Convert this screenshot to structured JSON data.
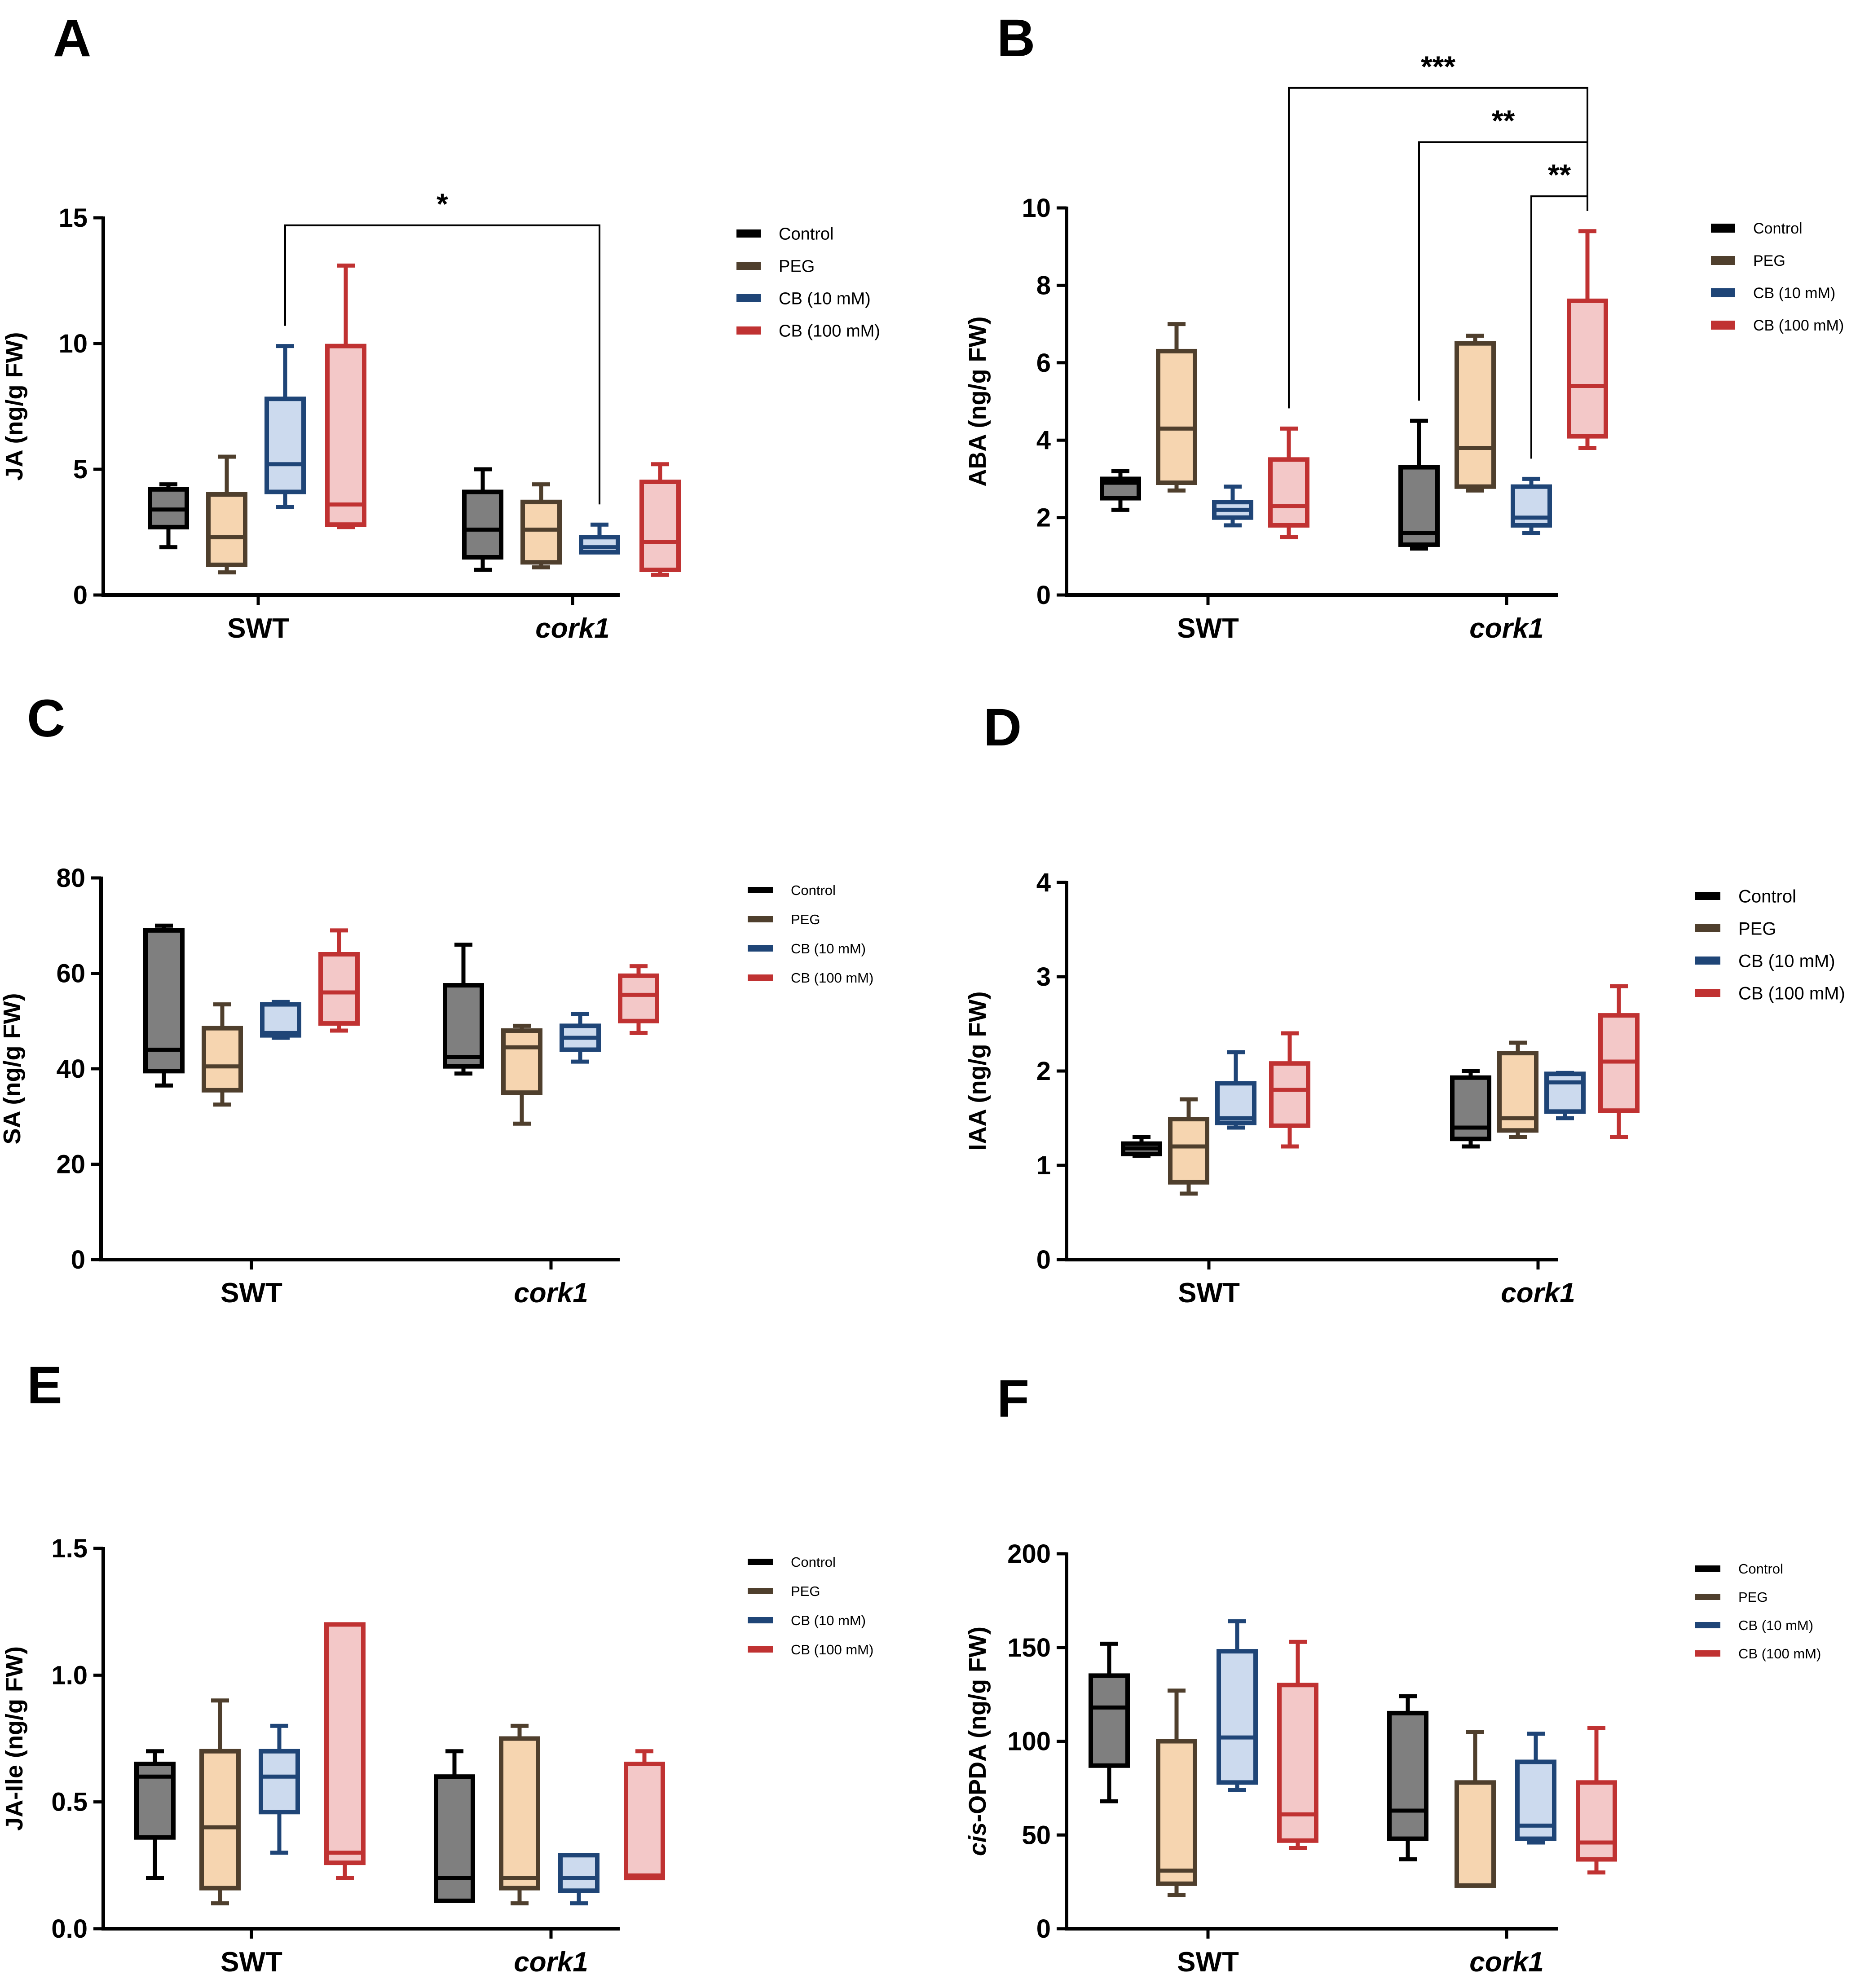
{
  "colors": {
    "Control": {
      "stroke": "#000000",
      "fill": "#7f7f7f"
    },
    "PEG": {
      "stroke": "#4f3f2d",
      "fill": "#f6d5b0"
    },
    "CB (10 mM)": {
      "stroke": "#1f4577",
      "fill": "#ccdaee"
    },
    "CB (100 mM)": {
      "stroke": "#c03232",
      "fill": "#f3c8c8"
    }
  },
  "chart_data": [
    {
      "panel": "A",
      "type": "box",
      "ylabel": "JA (ng/g FW)",
      "ylim": [
        0,
        15
      ],
      "yticks": [
        "0",
        "5",
        "10",
        "15"
      ],
      "groups": [
        "SWT",
        "cork1"
      ],
      "italic_groups": [
        "cork1"
      ],
      "legend": [
        "Control",
        "PEG",
        "CB (10 mM)",
        "CB (100 mM)"
      ],
      "series": [
        {
          "name": "Control",
          "boxes": [
            {
              "min": 1.9,
              "q1": 2.7,
              "median": 3.4,
              "q3": 4.2,
              "max": 4.4
            },
            {
              "min": 1.0,
              "q1": 1.5,
              "median": 2.6,
              "q3": 4.1,
              "max": 5.0
            }
          ]
        },
        {
          "name": "PEG",
          "boxes": [
            {
              "min": 0.9,
              "q1": 1.2,
              "median": 2.3,
              "q3": 4.0,
              "max": 5.5
            },
            {
              "min": 1.1,
              "q1": 1.3,
              "median": 2.6,
              "q3": 3.7,
              "max": 4.4
            }
          ]
        },
        {
          "name": "CB (10 mM)",
          "boxes": [
            {
              "min": 3.5,
              "q1": 4.1,
              "median": 5.2,
              "q3": 7.8,
              "max": 9.9
            },
            {
              "min": 1.7,
              "q1": 1.7,
              "median": 1.9,
              "q3": 2.3,
              "max": 2.8
            }
          ]
        },
        {
          "name": "CB (100 mM)",
          "boxes": [
            {
              "min": 2.7,
              "q1": 2.8,
              "median": 3.6,
              "q3": 9.9,
              "max": 13.1
            },
            {
              "min": 0.8,
              "q1": 1.0,
              "median": 2.1,
              "q3": 4.5,
              "max": 5.2
            }
          ]
        }
      ],
      "significance": [
        {
          "label": "*",
          "from": [
            0,
            2
          ],
          "to": [
            1,
            2
          ],
          "level": 14.7
        }
      ]
    },
    {
      "panel": "B",
      "type": "box",
      "ylabel": "ABA (ng/g FW)",
      "ylim": [
        0,
        10
      ],
      "yticks": [
        "0",
        "2",
        "4",
        "6",
        "8",
        "10"
      ],
      "groups": [
        "SWT",
        "cork1"
      ],
      "italic_groups": [
        "cork1"
      ],
      "legend": [
        "Control",
        "PEG",
        "CB (10 mM)",
        "CB (100 mM)"
      ],
      "series": [
        {
          "name": "Control",
          "boxes": [
            {
              "min": 2.2,
              "q1": 2.5,
              "median": 2.9,
              "q3": 3.0,
              "max": 3.2
            },
            {
              "min": 1.2,
              "q1": 1.3,
              "median": 1.6,
              "q3": 3.3,
              "max": 4.5
            }
          ]
        },
        {
          "name": "PEG",
          "boxes": [
            {
              "min": 2.7,
              "q1": 2.9,
              "median": 4.3,
              "q3": 6.3,
              "max": 7.0
            },
            {
              "min": 2.7,
              "q1": 2.8,
              "median": 3.8,
              "q3": 6.5,
              "max": 6.7
            }
          ]
        },
        {
          "name": "CB (10 mM)",
          "boxes": [
            {
              "min": 1.8,
              "q1": 2.0,
              "median": 2.2,
              "q3": 2.4,
              "max": 2.8
            },
            {
              "min": 1.6,
              "q1": 1.8,
              "median": 2.0,
              "q3": 2.8,
              "max": 3.0
            }
          ]
        },
        {
          "name": "CB (100 mM)",
          "boxes": [
            {
              "min": 1.5,
              "q1": 1.8,
              "median": 2.3,
              "q3": 3.5,
              "max": 4.3
            },
            {
              "min": 3.8,
              "q1": 4.1,
              "median": 5.4,
              "q3": 7.6,
              "max": 9.4
            }
          ]
        }
      ],
      "significance": [
        {
          "label": "***",
          "from": [
            0,
            3
          ],
          "to": [
            1,
            3
          ],
          "level": 13.1
        },
        {
          "label": "**",
          "from": [
            1,
            0
          ],
          "to": [
            1,
            3
          ],
          "level": 11.7
        },
        {
          "label": "**",
          "from": [
            1,
            2
          ],
          "to": [
            1,
            3
          ],
          "level": 10.3
        }
      ]
    },
    {
      "panel": "C",
      "type": "box",
      "ylabel": "SA (ng/g FW)",
      "ylim": [
        0,
        80
      ],
      "yticks": [
        "0",
        "20",
        "40",
        "60",
        "80"
      ],
      "groups": [
        "SWT",
        "cork1"
      ],
      "italic_groups": [
        "cork1"
      ],
      "legend": [
        "Control",
        "PEG",
        "CB (10 mM)",
        "CB (100 mM)"
      ],
      "series": [
        {
          "name": "Control",
          "boxes": [
            {
              "min": 36.5,
              "q1": 39.5,
              "median": 44,
              "q3": 69,
              "max": 70
            },
            {
              "min": 39,
              "q1": 40.5,
              "median": 42.5,
              "q3": 57.5,
              "max": 66
            }
          ]
        },
        {
          "name": "PEG",
          "boxes": [
            {
              "min": 32.5,
              "q1": 35.5,
              "median": 40.5,
              "q3": 48.5,
              "max": 53.5
            },
            {
              "min": 28.5,
              "q1": 35,
              "median": 44.5,
              "q3": 48,
              "max": 49
            }
          ]
        },
        {
          "name": "CB (10 mM)",
          "boxes": [
            {
              "min": 46.5,
              "q1": 47,
              "median": 47.5,
              "q3": 53.5,
              "max": 54
            },
            {
              "min": 41.5,
              "q1": 44,
              "median": 46.5,
              "q3": 49,
              "max": 51.5
            }
          ]
        },
        {
          "name": "CB (100 mM)",
          "boxes": [
            {
              "min": 48,
              "q1": 49.5,
              "median": 56,
              "q3": 64,
              "max": 69
            },
            {
              "min": 47.5,
              "q1": 50,
              "median": 55.5,
              "q3": 59.5,
              "max": 61.5
            }
          ]
        }
      ],
      "significance": []
    },
    {
      "panel": "D",
      "type": "box",
      "ylabel": "IAA (ng/g FW)",
      "ylim": [
        0,
        4
      ],
      "yticks": [
        "0",
        "1",
        "2",
        "3",
        "4"
      ],
      "groups": [
        "SWT",
        "cork1"
      ],
      "italic_groups": [
        "cork1"
      ],
      "legend": [
        "Control",
        "PEG",
        "CB (10 mM)",
        "CB (100 mM)"
      ],
      "series": [
        {
          "name": "Control",
          "boxes": [
            {
              "min": 1.1,
              "q1": 1.12,
              "median": 1.18,
              "q3": 1.23,
              "max": 1.3
            },
            {
              "min": 1.2,
              "q1": 1.28,
              "median": 1.4,
              "q3": 1.93,
              "max": 2.0
            }
          ]
        },
        {
          "name": "PEG",
          "boxes": [
            {
              "min": 0.7,
              "q1": 0.82,
              "median": 1.2,
              "q3": 1.49,
              "max": 1.7
            },
            {
              "min": 1.3,
              "q1": 1.37,
              "median": 1.5,
              "q3": 2.19,
              "max": 2.3
            }
          ]
        },
        {
          "name": "CB (10 mM)",
          "boxes": [
            {
              "min": 1.4,
              "q1": 1.45,
              "median": 1.5,
              "q3": 1.87,
              "max": 2.2
            },
            {
              "min": 1.5,
              "q1": 1.57,
              "median": 1.88,
              "q3": 1.97,
              "max": 1.98
            }
          ]
        },
        {
          "name": "CB (100 mM)",
          "boxes": [
            {
              "min": 1.2,
              "q1": 1.42,
              "median": 1.8,
              "q3": 2.08,
              "max": 2.4
            },
            {
              "min": 1.3,
              "q1": 1.58,
              "median": 2.1,
              "q3": 2.59,
              "max": 2.9
            }
          ]
        }
      ],
      "significance": []
    },
    {
      "panel": "E",
      "type": "box",
      "ylabel": "JA-Ile (ng/g FW)",
      "ylim": [
        0,
        1.5
      ],
      "yticks": [
        "0.0",
        "0.5",
        "1.0",
        "1.5"
      ],
      "groups": [
        "SWT",
        "cork1"
      ],
      "italic_groups": [
        "cork1"
      ],
      "legend": [
        "Control",
        "PEG",
        "CB (10 mM)",
        "CB (100 mM)"
      ],
      "series": [
        {
          "name": "Control",
          "boxes": [
            {
              "min": 0.2,
              "q1": 0.36,
              "median": 0.6,
              "q3": 0.65,
              "max": 0.7
            },
            {
              "min": 0.11,
              "q1": 0.11,
              "median": 0.2,
              "q3": 0.6,
              "max": 0.7
            }
          ]
        },
        {
          "name": "PEG",
          "boxes": [
            {
              "min": 0.1,
              "q1": 0.16,
              "median": 0.4,
              "q3": 0.7,
              "max": 0.9
            },
            {
              "min": 0.1,
              "q1": 0.16,
              "median": 0.2,
              "q3": 0.75,
              "max": 0.8
            }
          ]
        },
        {
          "name": "CB (10 mM)",
          "boxes": [
            {
              "min": 0.3,
              "q1": 0.46,
              "median": 0.6,
              "q3": 0.7,
              "max": 0.8
            },
            {
              "min": 0.1,
              "q1": 0.15,
              "median": 0.2,
              "q3": 0.29,
              "max": 0.29
            }
          ]
        },
        {
          "name": "CB (100 mM)",
          "boxes": [
            {
              "min": 0.2,
              "q1": 0.26,
              "median": 0.3,
              "q3": 1.2,
              "max": 1.2
            },
            {
              "min": 0.2,
              "q1": 0.2,
              "median": 0.21,
              "q3": 0.65,
              "max": 0.7
            }
          ]
        }
      ],
      "significance": []
    },
    {
      "panel": "F",
      "type": "box",
      "ylabel_italic": "cis",
      "ylabel": "-OPDA (ng/g FW)",
      "ylim": [
        0,
        200
      ],
      "yticks": [
        "0",
        "50",
        "100",
        "150",
        "200"
      ],
      "groups": [
        "SWT",
        "cork1"
      ],
      "italic_groups": [
        "cork1"
      ],
      "legend": [
        "Control",
        "PEG",
        "CB (10 mM)",
        "CB (100 mM)"
      ],
      "series": [
        {
          "name": "Control",
          "boxes": [
            {
              "min": 68,
              "q1": 87,
              "median": 118,
              "q3": 135,
              "max": 152
            },
            {
              "min": 37,
              "q1": 48,
              "median": 63,
              "q3": 115,
              "max": 124
            }
          ]
        },
        {
          "name": "PEG",
          "boxes": [
            {
              "min": 18,
              "q1": 24,
              "median": 31,
              "q3": 100,
              "max": 127
            },
            {
              "min": 23,
              "q1": 23,
              "median": 23,
              "q3": 78,
              "max": 105
            }
          ]
        },
        {
          "name": "CB (10 mM)",
          "boxes": [
            {
              "min": 74,
              "q1": 78,
              "median": 102,
              "q3": 148,
              "max": 164
            },
            {
              "min": 46,
              "q1": 48,
              "median": 55,
              "q3": 89,
              "max": 104
            }
          ]
        },
        {
          "name": "CB (100 mM)",
          "boxes": [
            {
              "min": 43,
              "q1": 47,
              "median": 61,
              "q3": 130,
              "max": 153
            },
            {
              "min": 30,
              "q1": 37,
              "median": 46,
              "q3": 78,
              "max": 107
            }
          ]
        }
      ],
      "significance": []
    }
  ]
}
